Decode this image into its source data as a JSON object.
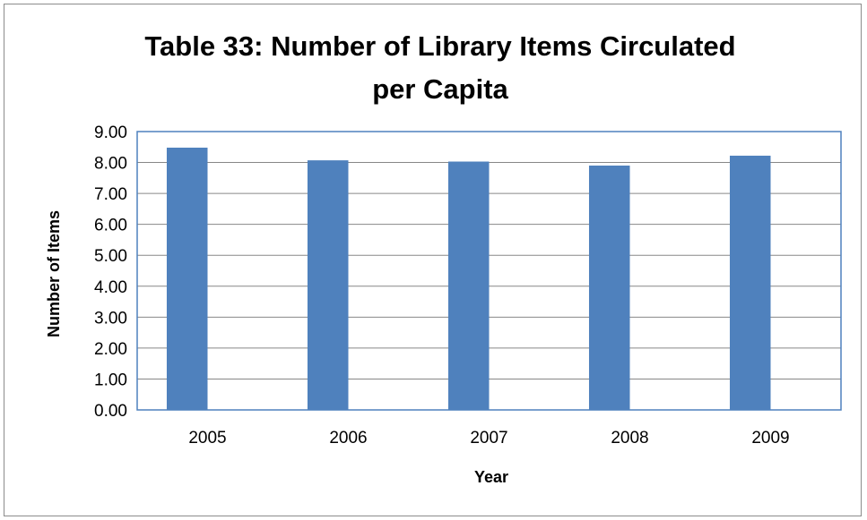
{
  "chart_data": {
    "type": "bar",
    "title_lines": [
      "Table 33:  Number of Library Items Circulated",
      "per Capita"
    ],
    "xlabel": "Year",
    "ylabel": "Number of Items",
    "categories": [
      "2005",
      "2006",
      "2007",
      "2008",
      "2009"
    ],
    "values": [
      8.48,
      8.07,
      8.03,
      7.9,
      8.22
    ],
    "ylim": [
      0,
      9
    ],
    "ytick_step": 1,
    "ytick_labels": [
      "0.00",
      "1.00",
      "2.00",
      "3.00",
      "4.00",
      "5.00",
      "6.00",
      "7.00",
      "8.00",
      "9.00"
    ],
    "grid": true,
    "legend": "none",
    "colors": {
      "bar": "#4F81BD",
      "grid": "#878787",
      "plot_border": "#4F81BD",
      "frame": "#8c8c8c"
    }
  }
}
